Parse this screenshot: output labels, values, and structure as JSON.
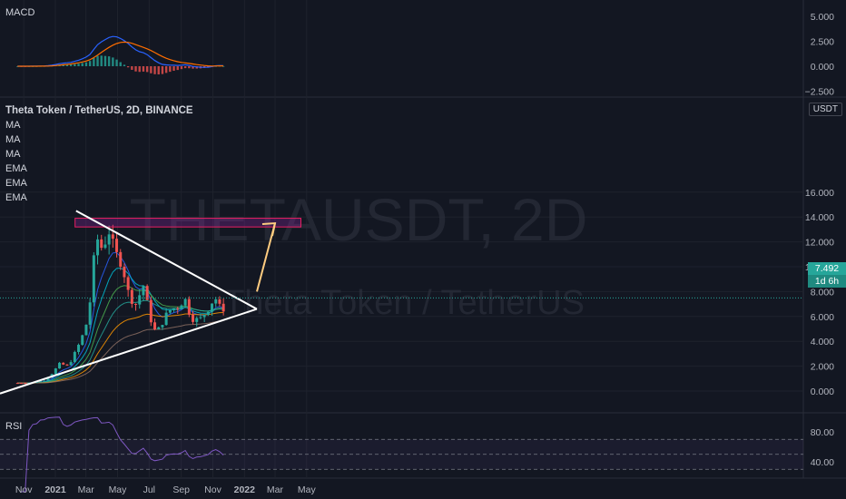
{
  "header": {
    "title": "Theta Token / TetherUS, 2D, BINANCE",
    "quote_badge": "USDT",
    "ma_labels": [
      "MA",
      "MA",
      "MA",
      "EMA",
      "EMA",
      "EMA"
    ]
  },
  "watermark": {
    "symbol": "THETAUSDT, 2D",
    "name": "Theta Token / TetherUS"
  },
  "macd_panel": {
    "label": "MACD",
    "ticks": [
      "5.000",
      "2.500",
      "0.000",
      "−2.500"
    ]
  },
  "rsi_panel": {
    "label": "RSI",
    "ticks": [
      "80.00",
      "40.00"
    ]
  },
  "price_tag": {
    "price": "7.492",
    "countdown": "1d 6h"
  },
  "colors": {
    "background": "#131722",
    "up": "#26a69a",
    "down": "#ef5350",
    "zone": "#9c27b0",
    "arrow": "#ffcc80"
  },
  "chart_data": {
    "type": "candlestick",
    "title": "Theta Token / TetherUS, 2D, BINANCE",
    "x_ticks": [
      "Nov",
      "2021",
      "Mar",
      "May",
      "Jul",
      "Sep",
      "Nov",
      "2022",
      "Mar",
      "May"
    ],
    "y_ticks": [
      "16.000",
      "14.000",
      "12.000",
      "10.000",
      "8.000",
      "6.000",
      "4.000",
      "2.000",
      "0.000"
    ],
    "ylim": [
      -0.8,
      16.5
    ],
    "last_price": 7.492,
    "price_path": [
      {
        "date": "2020-10-20",
        "close": 0.65
      },
      {
        "date": "2020-11-20",
        "close": 0.7
      },
      {
        "date": "2020-12-10",
        "close": 0.85
      },
      {
        "date": "2020-12-25",
        "close": 1.4
      },
      {
        "date": "2021-01-10",
        "close": 2.2
      },
      {
        "date": "2021-01-25",
        "close": 2.0
      },
      {
        "date": "2021-02-10",
        "close": 3.2
      },
      {
        "date": "2021-02-28",
        "close": 5.0
      },
      {
        "date": "2021-03-12",
        "close": 8.0
      },
      {
        "date": "2021-03-20",
        "close": 12.5
      },
      {
        "date": "2021-04-01",
        "close": 11.5
      },
      {
        "date": "2021-04-15",
        "close": 13.0
      },
      {
        "date": "2021-04-25",
        "close": 11.0
      },
      {
        "date": "2021-05-10",
        "close": 10.5
      },
      {
        "date": "2021-05-20",
        "close": 8.0
      },
      {
        "date": "2021-06-05",
        "close": 7.0
      },
      {
        "date": "2021-06-20",
        "close": 8.5
      },
      {
        "date": "2021-07-01",
        "close": 6.2
      },
      {
        "date": "2021-07-15",
        "close": 4.5
      },
      {
        "date": "2021-07-25",
        "close": 5.5
      },
      {
        "date": "2021-08-10",
        "close": 6.5
      },
      {
        "date": "2021-08-25",
        "close": 6.8
      },
      {
        "date": "2021-09-07",
        "close": 7.5
      },
      {
        "date": "2021-09-20",
        "close": 6.0
      },
      {
        "date": "2021-10-05",
        "close": 5.6
      },
      {
        "date": "2021-10-20",
        "close": 6.5
      },
      {
        "date": "2021-11-05",
        "close": 7.6
      },
      {
        "date": "2021-11-18",
        "close": 6.3
      },
      {
        "date": "2021-11-28",
        "close": 7.49
      }
    ],
    "resistance_zone": {
      "from": 13.2,
      "to": 13.9
    },
    "triangle": {
      "upper": [
        {
          "date": "2021-02-10",
          "value": 14.5
        },
        {
          "date": "2022-01-25",
          "value": 6.6
        }
      ],
      "lower": [
        {
          "date": "2020-10-20",
          "value": -0.2
        },
        {
          "date": "2022-01-25",
          "value": 6.6
        }
      ]
    },
    "projection_arrow": [
      {
        "date": "2022-01-25",
        "value": 8.0
      },
      {
        "date": "2022-03-01",
        "value": 13.5
      }
    ]
  }
}
